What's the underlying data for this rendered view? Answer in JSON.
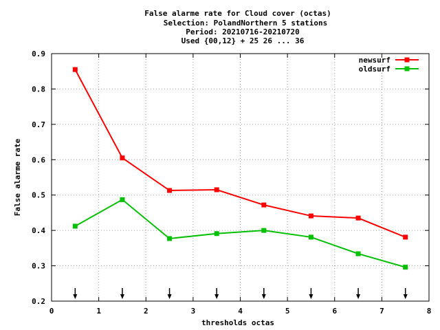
{
  "chart_data": {
    "type": "line",
    "title_lines": [
      "False alarme rate  for Cloud cover (octas)",
      "Selection: PolandNorthern      5 stations",
      "Period: 20210716-20210720",
      "Used {00,12} + 25 26 ... 36"
    ],
    "xlabel": "thresholds octas",
    "ylabel": "False alarme rate",
    "xlim": [
      0,
      8
    ],
    "ylim": [
      0.2,
      0.9
    ],
    "xticks": [
      0,
      1,
      2,
      3,
      4,
      5,
      6,
      7,
      8
    ],
    "xtick_labels": [
      "0",
      "1",
      "2",
      "3",
      "4",
      "5",
      "6",
      "7",
      "8"
    ],
    "yticks": [
      0.2,
      0.3,
      0.4,
      0.5,
      0.6,
      0.7,
      0.8,
      0.9
    ],
    "ytick_labels": [
      "0.2",
      "0.3",
      "0.4",
      "0.5",
      "0.6",
      "0.7",
      "0.8",
      "0.9"
    ],
    "grid": true,
    "legend_position": "top-right",
    "x": [
      0.5,
      1.5,
      2.5,
      3.5,
      4.5,
      5.5,
      6.5,
      7.5
    ],
    "series": [
      {
        "name": "newsurf",
        "color": "#ff0000",
        "values": [
          0.855,
          0.605,
          0.513,
          0.515,
          0.472,
          0.441,
          0.435,
          0.381
        ]
      },
      {
        "name": "oldsurf",
        "color": "#00c000",
        "values": [
          0.412,
          0.487,
          0.377,
          0.391,
          0.4,
          0.381,
          0.334,
          0.296
        ]
      }
    ],
    "threshold_markers": [
      0.5,
      1.5,
      2.5,
      3.5,
      4.5,
      5.5,
      6.5,
      7.5
    ]
  }
}
